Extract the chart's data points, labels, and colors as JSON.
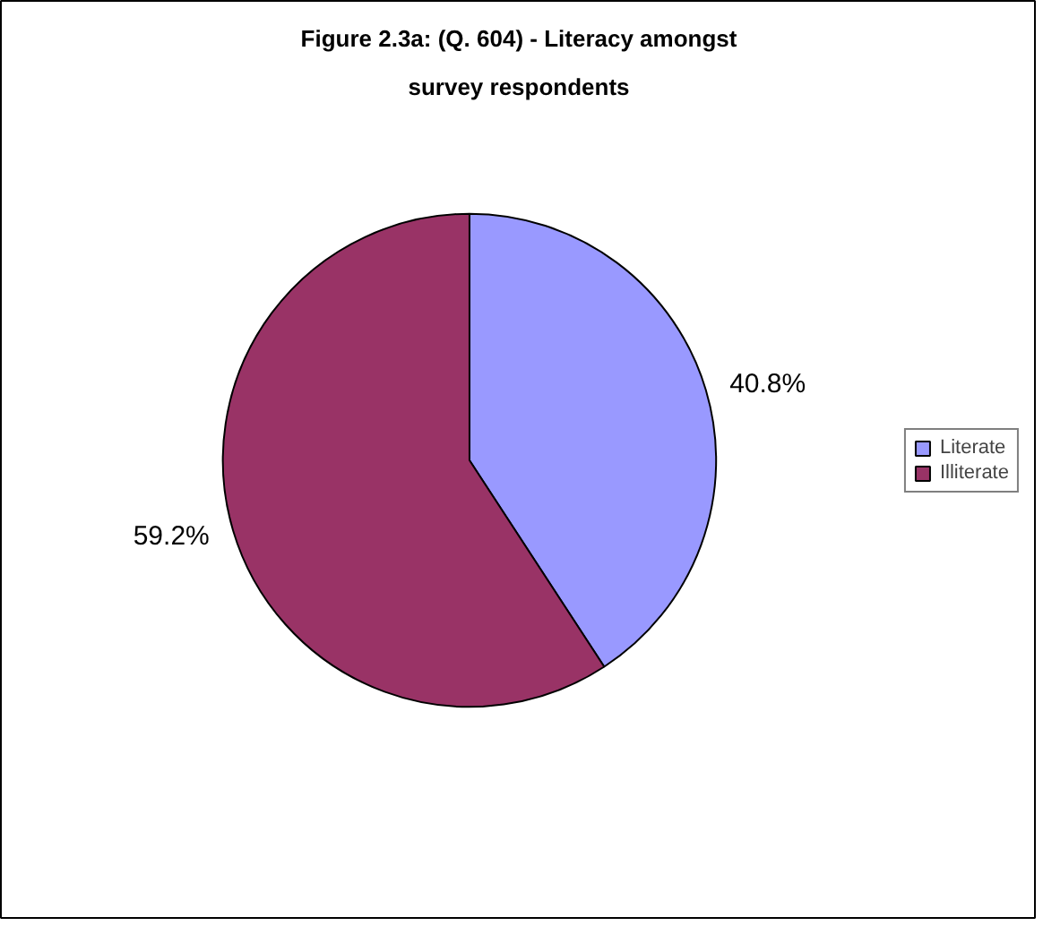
{
  "chart_data": {
    "type": "pie",
    "title": "Figure 2.3a: (Q. 604) - Literacy amongst survey respondents",
    "categories": [
      "Literate",
      "Illiterate"
    ],
    "values": [
      40.8,
      59.2
    ],
    "colors": [
      "#9999ff",
      "#993366"
    ],
    "value_labels": [
      "40.8%",
      "59.2%"
    ],
    "legend": "right"
  }
}
